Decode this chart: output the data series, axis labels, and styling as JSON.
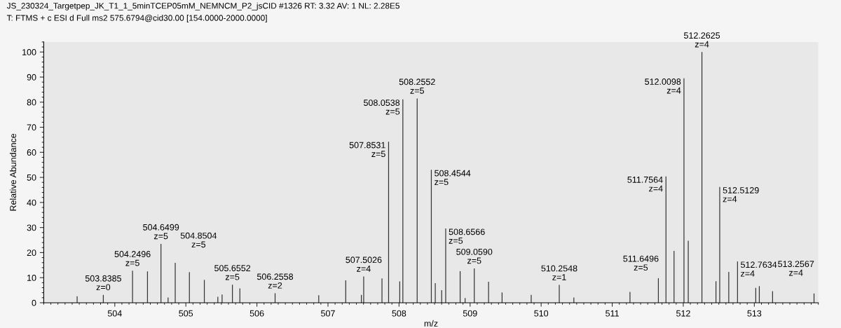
{
  "chart_data": {
    "type": "bar",
    "title": "JS_230324_Targetpep_JK_T1_1_5minTCEP05mM_NEMNCM_P2_jsCID #1326 RT: 3.32 AV: 1 NL: 2.28E5",
    "subtitle": "T: FTMS + c ESI d Full ms2 575.6794@cid30.00 [154.0000-2000.0000]",
    "xlabel": "m/z",
    "ylabel": "Relative Abundance",
    "x": [
      503.47,
      503.8385,
      504.2496,
      504.46,
      504.6499,
      504.75,
      504.8504,
      505.05,
      505.26,
      505.45,
      505.51,
      505.6552,
      505.76,
      506.2558,
      506.87,
      507.25,
      507.47,
      507.5026,
      507.76,
      507.8531,
      508.01,
      508.0538,
      508.2552,
      508.4544,
      508.51,
      508.6,
      508.6566,
      508.86,
      508.93,
      509.059,
      509.26,
      509.45,
      509.86,
      510.2548,
      510.46,
      511.25,
      511.6496,
      511.7564,
      511.87,
      512.0098,
      512.07,
      512.2625,
      512.46,
      512.5129,
      512.64,
      512.7634,
      513.02,
      513.07,
      513.2567,
      513.84
    ],
    "values": [
      2.6,
      3.1,
      12.8,
      12.5,
      23.5,
      2.1,
      15.9,
      12.2,
      9.1,
      2.4,
      3.3,
      7.2,
      5.7,
      3.8,
      3.0,
      8.9,
      3.1,
      10.5,
      9.7,
      64.2,
      8.5,
      81.1,
      81.5,
      53.0,
      7.8,
      5.0,
      29.6,
      12.6,
      1.9,
      13.7,
      8.4,
      4.1,
      3.1,
      7.1,
      2.1,
      4.3,
      9.8,
      50.4,
      20.7,
      89.5,
      24.7,
      100,
      8.6,
      46.2,
      12.3,
      16.5,
      5.9,
      6.6,
      4.6,
      3.7
    ],
    "color": "#333333",
    "xlim": [
      503.0,
      513.9
    ],
    "xticks": [
      504,
      505,
      506,
      507,
      508,
      509,
      510,
      511,
      512,
      513
    ],
    "ylim": [
      0,
      104
    ],
    "yticks": [
      0,
      10,
      20,
      30,
      40,
      50,
      60,
      70,
      80,
      90,
      100
    ],
    "annotations": [
      {
        "text": "503.8385\nz=0",
        "x": 503.8385,
        "y": 3.1
      },
      {
        "text": "504.2496\nz=5",
        "x": 504.2496,
        "y": 12.8
      },
      {
        "text": "504.6499\nz=5",
        "x": 504.6499,
        "y": 23.5
      },
      {
        "text": "504.8504\nz=5",
        "x": 504.8504,
        "y": 15.9
      },
      {
        "text": "505.6552\nz=5",
        "x": 505.6552,
        "y": 7.2
      },
      {
        "text": "506.2558\nz=2",
        "x": 506.2558,
        "y": 3.8
      },
      {
        "text": "507.5026\nz=4",
        "x": 507.5026,
        "y": 10.5
      },
      {
        "text": "507.8531\nz=5",
        "x": 507.8531,
        "y": 64.2
      },
      {
        "text": "508.0538\nz=5",
        "x": 508.0538,
        "y": 81.1
      },
      {
        "text": "508.2552\nz=5",
        "x": 508.2552,
        "y": 81.5
      },
      {
        "text": "508.4544\nz=5",
        "x": 508.4544,
        "y": 53.0
      },
      {
        "text": "508.6566\nz=5",
        "x": 508.6566,
        "y": 29.6
      },
      {
        "text": "509.0590\nz=5",
        "x": 509.059,
        "y": 13.7
      },
      {
        "text": "510.2548\nz=1",
        "x": 510.2548,
        "y": 7.1
      },
      {
        "text": "511.6496\nz=5",
        "x": 511.6496,
        "y": 9.8
      },
      {
        "text": "511.7564\nz=4",
        "x": 511.7564,
        "y": 50.4
      },
      {
        "text": "512.0098\nz=4",
        "x": 512.0098,
        "y": 89.5
      },
      {
        "text": "512.2625\nz=4",
        "x": 512.2625,
        "y": 100
      },
      {
        "text": "512.5129\nz=4",
        "x": 512.5129,
        "y": 46.2
      },
      {
        "text": "512.7634\nz=4",
        "x": 512.7634,
        "y": 16.5
      },
      {
        "text": "513.2567\nz=4",
        "x": 513.2567,
        "y": 4.6
      }
    ]
  }
}
